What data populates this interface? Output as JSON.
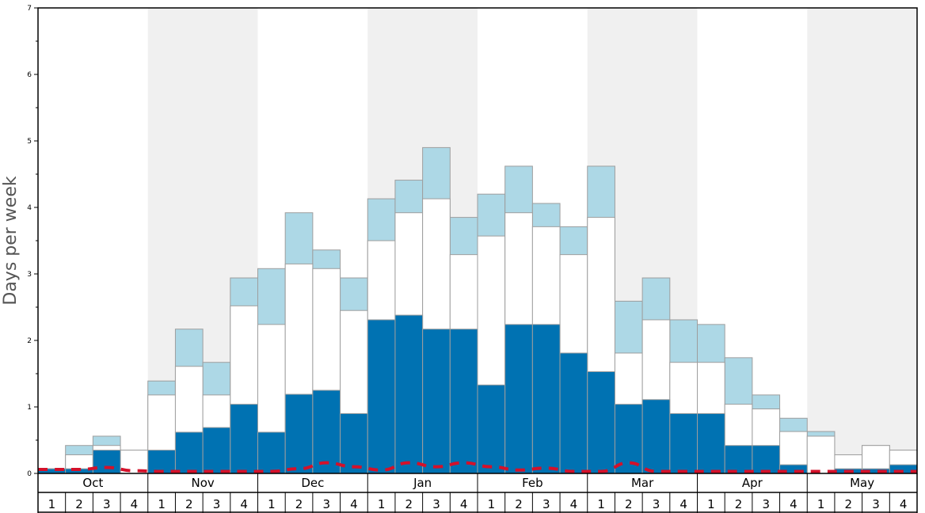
{
  "chart_data": {
    "type": "bar",
    "ylabel": "Days per week",
    "ylim": [
      0,
      7
    ],
    "yticks": [
      "0",
      "1",
      "2",
      "3",
      "4",
      "5",
      "6",
      "7"
    ],
    "months": [
      "Oct",
      "Nov",
      "Dec",
      "Jan",
      "Feb",
      "Mar",
      "Apr",
      "May"
    ],
    "week_labels": [
      "1",
      "2",
      "3",
      "4",
      "1",
      "2",
      "3",
      "4",
      "1",
      "2",
      "3",
      "4",
      "1",
      "2",
      "3",
      "4",
      "1",
      "2",
      "3",
      "4",
      "1",
      "2",
      "3",
      "4",
      "1",
      "2",
      "3",
      "4",
      "1",
      "2",
      "3",
      "4"
    ],
    "series": [
      {
        "key": "dark",
        "values": [
          0.07,
          0.07,
          0.35,
          0,
          0.35,
          0.62,
          0.69,
          1.04,
          0.62,
          1.19,
          1.25,
          0.9,
          2.31,
          2.38,
          2.17,
          2.17,
          1.33,
          2.24,
          2.24,
          1.81,
          1.53,
          1.04,
          1.11,
          0.9,
          0.9,
          0.42,
          0.42,
          0.13,
          0,
          0.07,
          0.07,
          0.13
        ],
        "color": "#0072b2"
      },
      {
        "key": "white",
        "values": [
          0.07,
          0.28,
          0.42,
          0.35,
          1.18,
          1.61,
          1.18,
          2.52,
          2.24,
          3.15,
          3.08,
          2.45,
          3.5,
          3.92,
          4.13,
          3.29,
          3.57,
          3.92,
          3.71,
          3.29,
          3.85,
          1.81,
          2.31,
          1.67,
          1.67,
          1.04,
          0.97,
          0.63,
          0.56,
          0.28,
          0.42,
          0.35
        ],
        "color": "#ffffff"
      },
      {
        "key": "light",
        "values": [
          0.07,
          0.42,
          0.56,
          0.35,
          1.39,
          2.17,
          1.67,
          2.94,
          3.08,
          3.92,
          3.36,
          2.94,
          4.13,
          4.41,
          4.9,
          3.85,
          4.2,
          4.62,
          4.06,
          3.71,
          4.62,
          2.59,
          2.94,
          2.31,
          2.24,
          1.74,
          1.18,
          0.83,
          0.63,
          0.28,
          0.42,
          0.35
        ],
        "color": "#add8e6"
      }
    ],
    "dashed_line": {
      "values": [
        0.06,
        0.06,
        0.09,
        0.04,
        0.03,
        0.03,
        0.03,
        0.03,
        0.03,
        0.07,
        0.16,
        0.1,
        0.05,
        0.16,
        0.1,
        0.16,
        0.1,
        0.05,
        0.08,
        0.03,
        0.03,
        0.16,
        0.03,
        0.03,
        0.03,
        0.03,
        0.03,
        0.03,
        0.03,
        0.03,
        0.03,
        0.03
      ],
      "color": "#d4112a"
    },
    "shade_color": "#f0f0f0",
    "grid": false
  }
}
